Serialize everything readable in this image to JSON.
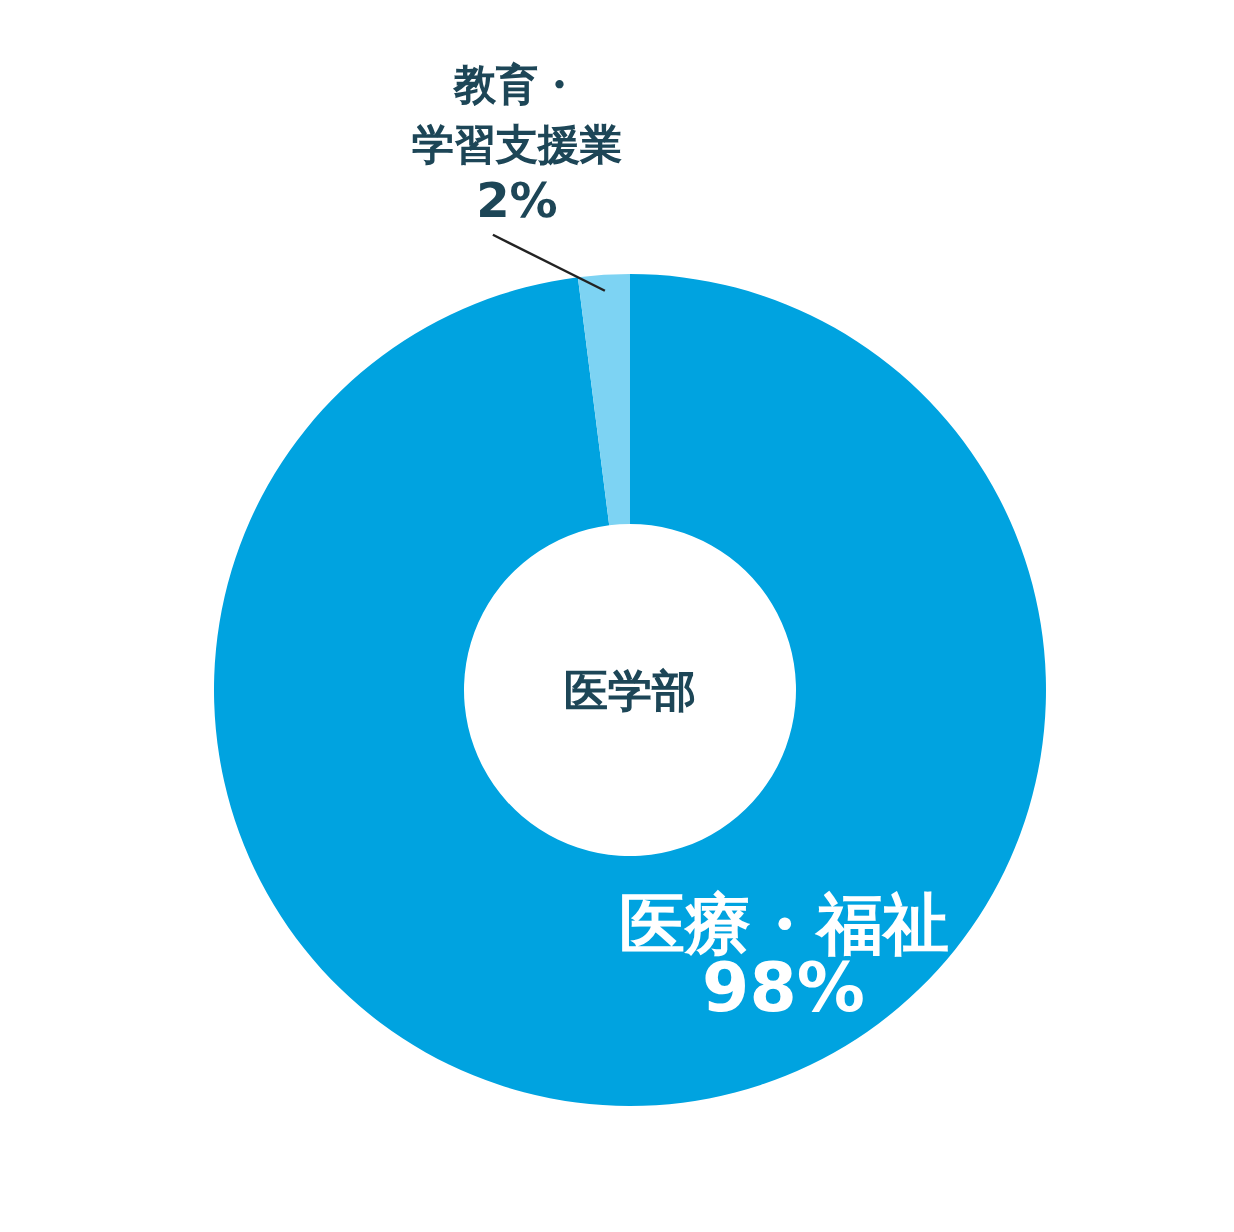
{
  "chart_data": {
    "type": "donut",
    "title": "医学部",
    "categories": [
      "医療・福祉",
      "教育・学習支援業"
    ],
    "values": [
      98,
      2
    ],
    "colors": [
      "#00a3e0",
      "#7dd3f3"
    ],
    "value_labels": [
      "98%",
      "2%"
    ]
  }
}
